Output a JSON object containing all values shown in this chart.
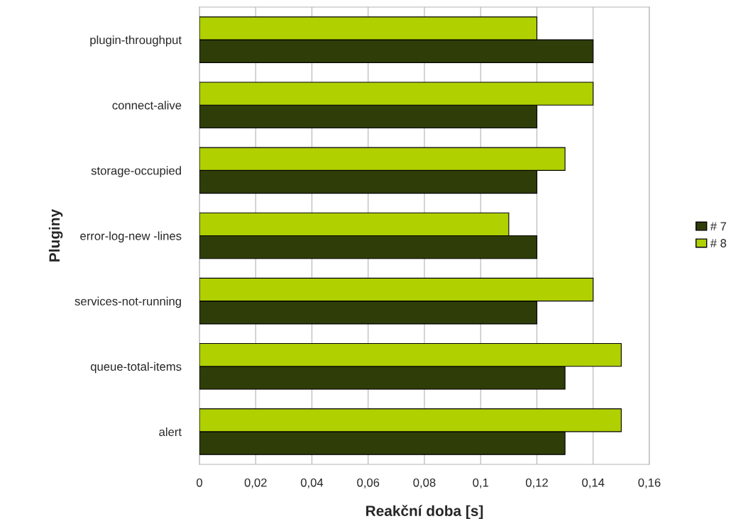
{
  "chart_data": {
    "type": "bar",
    "orientation": "horizontal",
    "xlabel": "Reakční doba [s]",
    "ylabel": "Pluginy",
    "categories": [
      "plugin-throughput",
      "connect-alive",
      "storage-occupied",
      "error-log-new -lines",
      "services-not-running",
      "queue-total-items",
      "alert"
    ],
    "series": [
      {
        "name": "# 7",
        "color": "#2f3d08",
        "values": [
          0.14,
          0.12,
          0.12,
          0.12,
          0.12,
          0.13,
          0.13
        ]
      },
      {
        "name": "# 8",
        "color": "#b0d000",
        "values": [
          0.12,
          0.14,
          0.13,
          0.11,
          0.14,
          0.15,
          0.15
        ]
      }
    ],
    "xlim": [
      0,
      0.16
    ],
    "xticks": [
      {
        "value": 0,
        "label": "0"
      },
      {
        "value": 0.02,
        "label": "0,02"
      },
      {
        "value": 0.04,
        "label": "0,04"
      },
      {
        "value": 0.06,
        "label": "0,06"
      },
      {
        "value": 0.08,
        "label": "0,08"
      },
      {
        "value": 0.1,
        "label": "0,1"
      },
      {
        "value": 0.12,
        "label": "0,12"
      },
      {
        "value": 0.14,
        "label": "0,14"
      },
      {
        "value": 0.16,
        "label": "0,16"
      }
    ],
    "grid": "x",
    "legend": "right"
  }
}
